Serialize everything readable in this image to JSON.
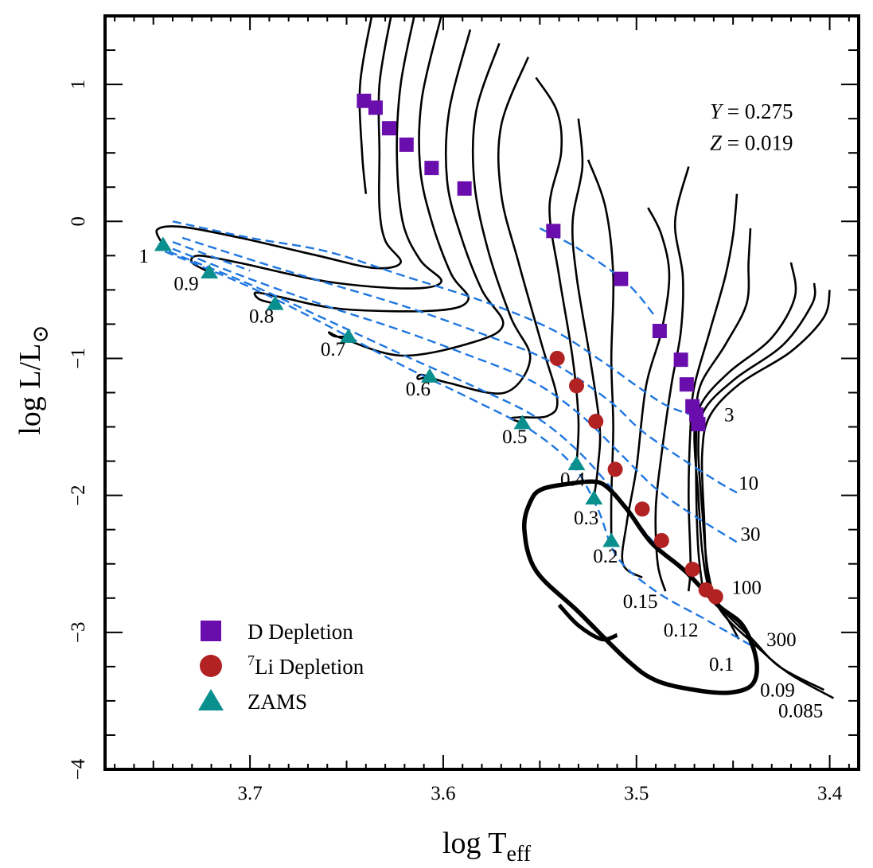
{
  "chart_data": {
    "type": "scatter",
    "xlabel": "log T",
    "xlabel_sub": "eff",
    "ylabel": "log L/L",
    "ylabel_sub": "⊙",
    "xlim": [
      3.775,
      3.385
    ],
    "ylim": [
      -4,
      1.5
    ],
    "x_ticks": [
      3.7,
      3.6,
      3.5,
      3.4
    ],
    "x_tick_labels": [
      "3.7",
      "3.6",
      "3.5",
      "3.4"
    ],
    "y_ticks": [
      1,
      0,
      -1,
      -2,
      -3,
      -4
    ],
    "y_tick_labels": [
      "1",
      "0",
      "−1",
      "−2",
      "−3",
      "−4"
    ],
    "annotations": [
      {
        "text_italic": "Y",
        "text": " = 0.275",
        "x": 3.462,
        "y": 0.75
      },
      {
        "text_italic": "Z",
        "text": " = 0.019",
        "x": 3.462,
        "y": 0.52
      }
    ],
    "legend": {
      "position": "bottom-left",
      "entries": [
        {
          "label": "D Depletion",
          "marker": "square",
          "color": "#6a0dad"
        },
        {
          "sup": "7",
          "label": "Li Depletion",
          "marker": "circle",
          "color": "#b22222"
        },
        {
          "label": "ZAMS",
          "marker": "triangle",
          "color": "#0a8f8f"
        }
      ]
    },
    "colors": {
      "tracks": "#000000",
      "isochrones": "#1f77e0",
      "d_depletion": "#6a0dad",
      "li_depletion": "#b22222",
      "zams": "#0a8f8f"
    },
    "d_depletion": [
      {
        "x": 3.641,
        "y": 0.88
      },
      {
        "x": 3.635,
        "y": 0.83
      },
      {
        "x": 3.628,
        "y": 0.68
      },
      {
        "x": 3.619,
        "y": 0.56
      },
      {
        "x": 3.606,
        "y": 0.39
      },
      {
        "x": 3.589,
        "y": 0.24
      },
      {
        "x": 3.543,
        "y": -0.07
      },
      {
        "x": 3.508,
        "y": -0.42
      },
      {
        "x": 3.488,
        "y": -0.8
      },
      {
        "x": 3.477,
        "y": -1.01
      },
      {
        "x": 3.474,
        "y": -1.19
      },
      {
        "x": 3.471,
        "y": -1.35
      },
      {
        "x": 3.469,
        "y": -1.41
      },
      {
        "x": 3.468,
        "y": -1.48
      }
    ],
    "li_depletion": [
      {
        "x": 3.541,
        "y": -1.0
      },
      {
        "x": 3.531,
        "y": -1.2
      },
      {
        "x": 3.521,
        "y": -1.46
      },
      {
        "x": 3.511,
        "y": -1.81
      },
      {
        "x": 3.497,
        "y": -2.1
      },
      {
        "x": 3.487,
        "y": -2.33
      },
      {
        "x": 3.471,
        "y": -2.54
      },
      {
        "x": 3.464,
        "y": -2.69
      },
      {
        "x": 3.459,
        "y": -2.74
      }
    ],
    "zams": [
      {
        "x": 3.745,
        "y": -0.17
      },
      {
        "x": 3.721,
        "y": -0.37
      },
      {
        "x": 3.687,
        "y": -0.6
      },
      {
        "x": 3.649,
        "y": -0.84
      },
      {
        "x": 3.607,
        "y": -1.13
      },
      {
        "x": 3.559,
        "y": -1.47
      },
      {
        "x": 3.531,
        "y": -1.77
      },
      {
        "x": 3.522,
        "y": -2.02
      },
      {
        "x": 3.513,
        "y": -2.33
      }
    ],
    "mass_labels": [
      {
        "text": "1",
        "x": 3.755,
        "y": -0.3
      },
      {
        "text": "0.9",
        "x": 3.733,
        "y": -0.5
      },
      {
        "text": "0.8",
        "x": 3.694,
        "y": -0.74
      },
      {
        "text": "0.7",
        "x": 3.657,
        "y": -0.98
      },
      {
        "text": "0.6",
        "x": 3.613,
        "y": -1.27
      },
      {
        "text": "0.5",
        "x": 3.563,
        "y": -1.62
      },
      {
        "text": "0.4",
        "x": 3.533,
        "y": -1.93
      },
      {
        "text": "0.3",
        "x": 3.526,
        "y": -2.21
      },
      {
        "text": "0.2",
        "x": 3.516,
        "y": -2.49
      },
      {
        "text": "0.15",
        "x": 3.498,
        "y": -2.82
      },
      {
        "text": "0.12",
        "x": 3.477,
        "y": -3.03
      },
      {
        "text": "0.1",
        "x": 3.456,
        "y": -3.28
      },
      {
        "text": "0.09",
        "x": 3.427,
        "y": -3.47
      },
      {
        "text": "0.085",
        "x": 3.415,
        "y": -3.62
      }
    ],
    "age_labels": [
      {
        "text": "3",
        "x": 3.452,
        "y": -1.46
      },
      {
        "text": "10",
        "x": 3.442,
        "y": -1.96
      },
      {
        "text": "30",
        "x": 3.441,
        "y": -2.33
      },
      {
        "text": "100",
        "x": 3.443,
        "y": -2.72
      },
      {
        "text": "300",
        "x": 3.425,
        "y": -3.1
      }
    ],
    "tracks": [
      [
        [
          3.637,
          1.5
        ],
        [
          3.643,
          1.0
        ],
        [
          3.642,
          0.5
        ],
        [
          3.64,
          0.2
        ]
      ],
      [
        [
          3.627,
          1.5
        ],
        [
          3.633,
          1.0
        ],
        [
          3.633,
          0.5
        ],
        [
          3.633,
          0.1
        ],
        [
          3.63,
          -0.14
        ],
        [
          3.622,
          -0.3
        ],
        [
          3.636,
          -0.34
        ],
        [
          3.665,
          -0.25
        ],
        [
          3.705,
          -0.12
        ],
        [
          3.735,
          -0.04
        ],
        [
          3.748,
          -0.06
        ],
        [
          3.745,
          -0.17
        ]
      ],
      [
        [
          3.615,
          1.5
        ],
        [
          3.622,
          1.0
        ],
        [
          3.624,
          0.5
        ],
        [
          3.621,
          0.0
        ],
        [
          3.612,
          -0.28
        ],
        [
          3.601,
          -0.44
        ],
        [
          3.618,
          -0.49
        ],
        [
          3.66,
          -0.44
        ],
        [
          3.703,
          -0.31
        ],
        [
          3.726,
          -0.25
        ],
        [
          3.73,
          -0.3
        ],
        [
          3.721,
          -0.37
        ]
      ],
      [
        [
          3.601,
          1.5
        ],
        [
          3.611,
          0.9
        ],
        [
          3.612,
          0.4
        ],
        [
          3.606,
          0.0
        ],
        [
          3.596,
          -0.38
        ],
        [
          3.587,
          -0.57
        ],
        [
          3.603,
          -0.65
        ],
        [
          3.652,
          -0.64
        ],
        [
          3.685,
          -0.55
        ],
        [
          3.697,
          -0.52
        ],
        [
          3.695,
          -0.57
        ],
        [
          3.687,
          -0.6
        ]
      ],
      [
        [
          3.586,
          1.4
        ],
        [
          3.597,
          0.8
        ],
        [
          3.598,
          0.3
        ],
        [
          3.591,
          -0.1
        ],
        [
          3.58,
          -0.5
        ],
        [
          3.569,
          -0.75
        ],
        [
          3.584,
          -0.88
        ],
        [
          3.621,
          -0.98
        ],
        [
          3.651,
          -0.86
        ],
        [
          3.659,
          -0.81
        ],
        [
          3.656,
          -0.84
        ],
        [
          3.649,
          -0.84
        ]
      ],
      [
        [
          3.571,
          1.3
        ],
        [
          3.583,
          0.8
        ],
        [
          3.584,
          0.3
        ],
        [
          3.577,
          -0.2
        ],
        [
          3.565,
          -0.7
        ],
        [
          3.555,
          -1.0
        ],
        [
          3.568,
          -1.25
        ],
        [
          3.597,
          -1.18
        ],
        [
          3.611,
          -1.12
        ],
        [
          3.613,
          -1.15
        ],
        [
          3.607,
          -1.13
        ]
      ],
      [
        [
          3.556,
          1.2
        ],
        [
          3.57,
          0.7
        ],
        [
          3.57,
          0.2
        ],
        [
          3.561,
          -0.3
        ],
        [
          3.549,
          -0.9
        ],
        [
          3.541,
          -1.3
        ],
        [
          3.546,
          -1.42
        ],
        [
          3.561,
          -1.43
        ],
        [
          3.565,
          -1.44
        ],
        [
          3.559,
          -1.47
        ]
      ],
      [
        [
          3.552,
          1.05
        ],
        [
          3.541,
          0.8
        ],
        [
          3.539,
          0.5
        ],
        [
          3.545,
          0.1
        ],
        [
          3.54,
          -0.4
        ],
        [
          3.533,
          -1.0
        ],
        [
          3.53,
          -1.45
        ],
        [
          3.531,
          -1.77
        ]
      ],
      [
        [
          3.53,
          0.75
        ],
        [
          3.528,
          0.4
        ],
        [
          3.533,
          0.0
        ],
        [
          3.531,
          -0.4
        ],
        [
          3.524,
          -1.0
        ],
        [
          3.519,
          -1.5
        ],
        [
          3.52,
          -1.8
        ],
        [
          3.522,
          -2.02
        ]
      ],
      [
        [
          3.525,
          0.45
        ],
        [
          3.516,
          0.1
        ],
        [
          3.512,
          -0.4
        ],
        [
          3.513,
          -1.0
        ],
        [
          3.512,
          -1.5
        ],
        [
          3.513,
          -2.0
        ],
        [
          3.513,
          -2.33
        ]
      ],
      [
        [
          3.494,
          0.1
        ],
        [
          3.487,
          -0.1
        ],
        [
          3.483,
          -0.4
        ],
        [
          3.487,
          -0.8
        ],
        [
          3.495,
          -1.2
        ],
        [
          3.5,
          -1.8
        ],
        [
          3.505,
          -2.2
        ],
        [
          3.507,
          -2.5
        ],
        [
          3.497,
          -2.6
        ]
      ],
      [
        [
          3.473,
          0.4
        ],
        [
          3.48,
          0.0
        ],
        [
          3.476,
          -0.4
        ],
        [
          3.477,
          -0.8
        ],
        [
          3.482,
          -1.2
        ],
        [
          3.487,
          -1.7
        ],
        [
          3.49,
          -2.1
        ],
        [
          3.489,
          -2.5
        ],
        [
          3.485,
          -2.7
        ]
      ],
      [
        [
          3.448,
          0.2
        ],
        [
          3.45,
          -0.1
        ],
        [
          3.454,
          -0.4
        ],
        [
          3.462,
          -0.8
        ],
        [
          3.47,
          -1.2
        ],
        [
          3.472,
          -1.5
        ],
        [
          3.473,
          -2.0
        ],
        [
          3.472,
          -2.5
        ],
        [
          3.473,
          -2.7
        ]
      ],
      [
        [
          3.441,
          -0.05
        ],
        [
          3.442,
          -0.3
        ],
        [
          3.443,
          -0.6
        ],
        [
          3.454,
          -0.9
        ],
        [
          3.467,
          -1.2
        ],
        [
          3.469,
          -1.5
        ],
        [
          3.469,
          -2.0
        ],
        [
          3.468,
          -2.4
        ],
        [
          3.466,
          -2.65
        ]
      ],
      [
        [
          3.42,
          -0.3
        ],
        [
          3.418,
          -0.55
        ],
        [
          3.43,
          -0.85
        ],
        [
          3.452,
          -1.1
        ],
        [
          3.466,
          -1.32
        ],
        [
          3.47,
          -1.55
        ],
        [
          3.468,
          -2.0
        ],
        [
          3.466,
          -2.4
        ],
        [
          3.462,
          -2.7
        ],
        [
          3.453,
          -2.9
        ],
        [
          3.447,
          -3.05
        ]
      ],
      [
        [
          3.408,
          -0.45
        ],
        [
          3.409,
          -0.6
        ],
        [
          3.424,
          -0.9
        ],
        [
          3.449,
          -1.15
        ],
        [
          3.465,
          -1.38
        ],
        [
          3.468,
          -1.65
        ],
        [
          3.466,
          -2.1
        ],
        [
          3.463,
          -2.55
        ],
        [
          3.457,
          -2.8
        ],
        [
          3.44,
          -3.05
        ],
        [
          3.426,
          -3.25
        ],
        [
          3.403,
          -3.42
        ]
      ],
      [
        [
          3.4,
          -0.5
        ],
        [
          3.403,
          -0.7
        ],
        [
          3.42,
          -0.95
        ],
        [
          3.446,
          -1.18
        ],
        [
          3.462,
          -1.42
        ],
        [
          3.466,
          -1.7
        ],
        [
          3.465,
          -2.15
        ],
        [
          3.463,
          -2.6
        ],
        [
          3.456,
          -2.85
        ],
        [
          3.438,
          -3.1
        ],
        [
          3.421,
          -3.3
        ],
        [
          3.398,
          -3.48
        ]
      ]
    ],
    "isochrones": [
      [
        [
          3.74,
          0.0
        ],
        [
          3.7,
          -0.12
        ],
        [
          3.66,
          -0.22
        ],
        [
          3.62,
          -0.4
        ],
        [
          3.58,
          -0.58
        ],
        [
          3.545,
          -0.78
        ],
        [
          3.52,
          -1.0
        ],
        [
          3.5,
          -1.2
        ],
        [
          3.485,
          -1.34
        ],
        [
          3.472,
          -1.41
        ]
      ],
      [
        [
          3.735,
          -0.12
        ],
        [
          3.695,
          -0.3
        ],
        [
          3.66,
          -0.45
        ],
        [
          3.62,
          -0.62
        ],
        [
          3.58,
          -0.82
        ],
        [
          3.545,
          -1.02
        ],
        [
          3.515,
          -1.3
        ],
        [
          3.498,
          -1.52
        ],
        [
          3.48,
          -1.7
        ],
        [
          3.458,
          -1.9
        ],
        [
          3.448,
          -1.98
        ]
      ],
      [
        [
          3.74,
          -0.2
        ],
        [
          3.7,
          -0.42
        ],
        [
          3.66,
          -0.62
        ],
        [
          3.625,
          -0.78
        ],
        [
          3.59,
          -0.96
        ],
        [
          3.555,
          -1.16
        ],
        [
          3.53,
          -1.4
        ],
        [
          3.508,
          -1.7
        ],
        [
          3.49,
          -1.95
        ],
        [
          3.47,
          -2.15
        ],
        [
          3.447,
          -2.35
        ]
      ],
      [
        [
          3.742,
          -0.22
        ],
        [
          3.7,
          -0.46
        ],
        [
          3.66,
          -0.72
        ],
        [
          3.62,
          -0.98
        ],
        [
          3.585,
          -1.2
        ],
        [
          3.553,
          -1.42
        ],
        [
          3.53,
          -1.68
        ],
        [
          3.51,
          -2.0
        ],
        [
          3.495,
          -2.28
        ],
        [
          3.48,
          -2.5
        ],
        [
          3.465,
          -2.68
        ]
      ],
      [
        [
          3.744,
          -0.22
        ],
        [
          3.7,
          -0.48
        ],
        [
          3.66,
          -0.76
        ],
        [
          3.62,
          -1.06
        ],
        [
          3.585,
          -1.3
        ],
        [
          3.555,
          -1.52
        ],
        [
          3.533,
          -1.78
        ],
        [
          3.52,
          -2.1
        ],
        [
          3.51,
          -2.45
        ],
        [
          3.49,
          -2.7
        ],
        [
          3.465,
          -2.9
        ],
        [
          3.44,
          -3.1
        ]
      ],
      [
        [
          3.74,
          -0.15
        ],
        [
          3.7,
          -0.36
        ]
      ],
      [
        [
          3.55,
          -0.05
        ],
        [
          3.53,
          -0.2
        ],
        [
          3.505,
          -0.45
        ],
        [
          3.49,
          -0.7
        ]
      ]
    ],
    "boundary_thick": [
      [
        3.527,
        -1.9
      ],
      [
        3.548,
        -1.95
      ],
      [
        3.555,
        -2.05
      ],
      [
        3.558,
        -2.25
      ],
      [
        3.552,
        -2.55
      ],
      [
        3.53,
        -2.85
      ],
      [
        3.505,
        -3.2
      ],
      [
        3.49,
        -3.35
      ],
      [
        3.47,
        -3.42
      ],
      [
        3.452,
        -3.44
      ],
      [
        3.44,
        -3.38
      ],
      [
        3.438,
        -3.2
      ],
      [
        3.445,
        -2.95
      ],
      [
        3.458,
        -2.8
      ],
      [
        3.475,
        -2.55
      ],
      [
        3.492,
        -2.35
      ],
      [
        3.505,
        -2.1
      ],
      [
        3.517,
        -1.92
      ],
      [
        3.527,
        -1.9
      ]
    ],
    "boundary_branch": [
      [
        3.54,
        -2.8
      ],
      [
        3.53,
        -2.95
      ],
      [
        3.518,
        -3.05
      ],
      [
        3.51,
        -3.02
      ]
    ]
  }
}
